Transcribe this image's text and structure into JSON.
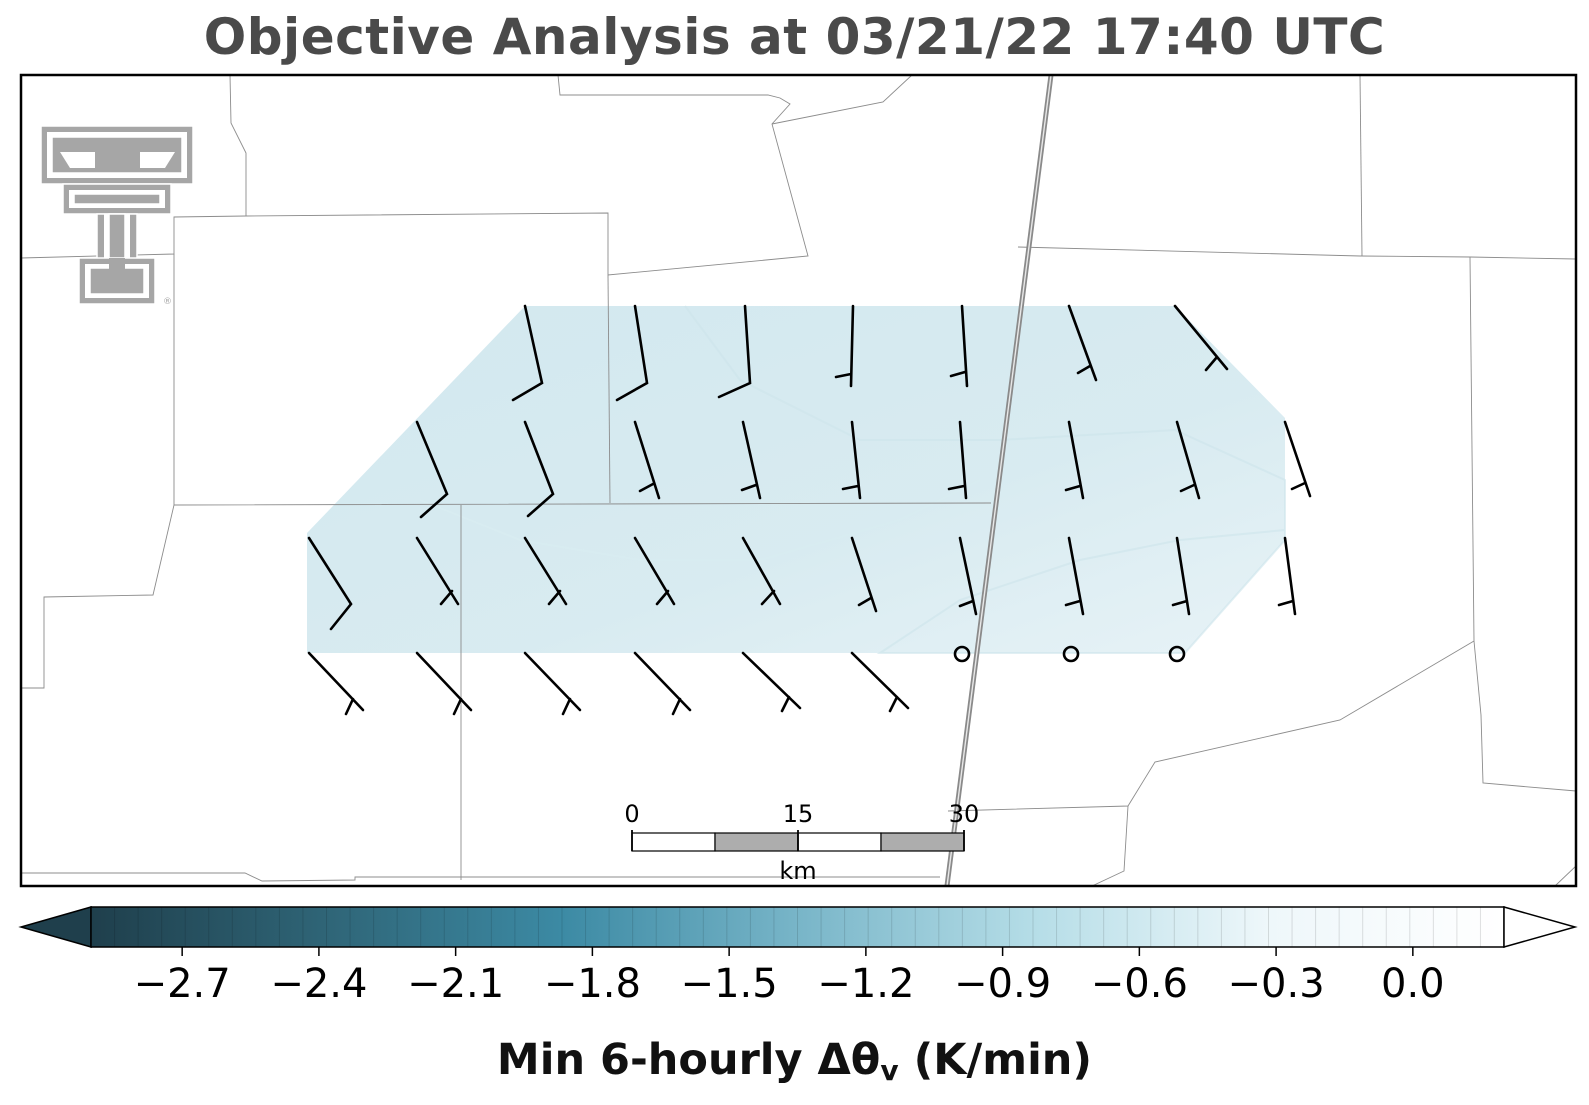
{
  "title": "Objective Analysis at 03/21/22 17:40 UTC",
  "colorbar": {
    "label_main": "Min 6-hourly Δθ",
    "label_sub": "v",
    "label_units": " (K/min)",
    "vmin": -2.9,
    "vmax": 0.2,
    "ticks": [
      -2.7,
      -2.4,
      -2.1,
      -1.8,
      -1.5,
      -1.2,
      -0.9,
      -0.6,
      -0.3,
      0.0
    ],
    "tick_labels": [
      "−2.7",
      "−2.4",
      "−2.1",
      "−1.8",
      "−1.5",
      "−1.2",
      "−0.9",
      "−0.6",
      "−0.3",
      "0.0"
    ],
    "extend": "both",
    "colormap": [
      "#1f3f4c",
      "#2f6577",
      "#3c8aa4",
      "#78b5c8",
      "#b5dde7",
      "#eef7fa",
      "#ffffff"
    ]
  },
  "scalebar": {
    "ticks": [
      "0",
      "15",
      "30"
    ],
    "unit": "km"
  },
  "field": {
    "fill_color": "#d3e8ee",
    "approx_value": -0.75
  },
  "logo": {
    "name": "Texas Tech double-T logo",
    "text": "®"
  }
}
